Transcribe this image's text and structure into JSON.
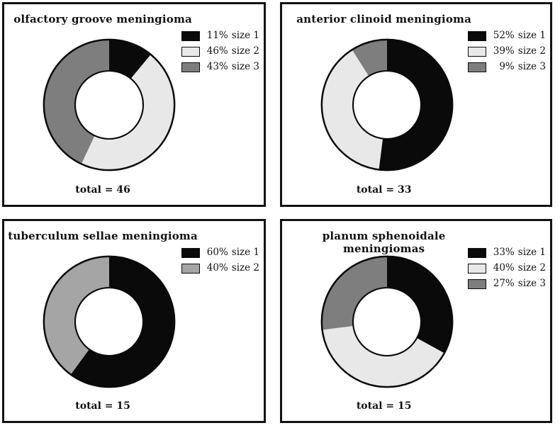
{
  "figure": {
    "description": "Four-panel figure of donut charts showing tumor size distribution for meningiomas by anatomical location",
    "layout": "2x2 grid of bordered panels"
  },
  "colors": {
    "background": "#ffffff",
    "panel_border": "#131313",
    "donut_outline": "#0a0a0a",
    "text": "#111111",
    "size1_black": "#0a0a0a",
    "size2_light_gray": "#e8e8e8",
    "size3_gray": "#7e7e7e",
    "tuberculum_size2_gray": "#a5a5a5"
  },
  "chart_data": [
    {
      "type": "pie",
      "subtype": "donut",
      "title": "olfactory groove meningioma",
      "total": 46,
      "total_label": "total = 46",
      "start_angle_deg": 0,
      "direction": "clockwise",
      "legend_position": "upper right",
      "slices": [
        {
          "label": "size 1",
          "pct": 11,
          "pct_label": "11%",
          "color": "#0a0a0a"
        },
        {
          "label": "size 2",
          "pct": 46,
          "pct_label": "46%",
          "color": "#e8e8e8"
        },
        {
          "label": "size 3",
          "pct": 43,
          "pct_label": "43%",
          "color": "#7e7e7e"
        }
      ]
    },
    {
      "type": "pie",
      "subtype": "donut",
      "title": "anterior clinoid meningioma",
      "total": 33,
      "total_label": "total = 33",
      "start_angle_deg": 0,
      "direction": "clockwise",
      "legend_position": "upper right",
      "slices": [
        {
          "label": "size 1",
          "pct": 52,
          "pct_label": "52%",
          "color": "#0a0a0a"
        },
        {
          "label": "size 2",
          "pct": 39,
          "pct_label": "39%",
          "color": "#e8e8e8"
        },
        {
          "label": "size 3",
          "pct": 9,
          "pct_label": "9%",
          "color": "#7e7e7e"
        }
      ]
    },
    {
      "type": "pie",
      "subtype": "donut",
      "title": "tuberculum sellae meningioma",
      "total": 15,
      "total_label": "total = 15",
      "start_angle_deg": 0,
      "direction": "clockwise",
      "legend_position": "upper right",
      "slices": [
        {
          "label": "size 1",
          "pct": 60,
          "pct_label": "60%",
          "color": "#0a0a0a"
        },
        {
          "label": "size 2",
          "pct": 40,
          "pct_label": "40%",
          "color": "#a5a5a5"
        }
      ]
    },
    {
      "type": "pie",
      "subtype": "donut",
      "title": "planum sphenoidale meningiomas",
      "total": 15,
      "total_label": "total = 15",
      "start_angle_deg": 0,
      "direction": "clockwise",
      "legend_position": "upper right",
      "slices": [
        {
          "label": "size 1",
          "pct": 33,
          "pct_label": "33%",
          "color": "#0a0a0a"
        },
        {
          "label": "size 2",
          "pct": 40,
          "pct_label": "40%",
          "color": "#e8e8e8"
        },
        {
          "label": "size 3",
          "pct": 27,
          "pct_label": "27%",
          "color": "#7e7e7e"
        }
      ]
    }
  ]
}
